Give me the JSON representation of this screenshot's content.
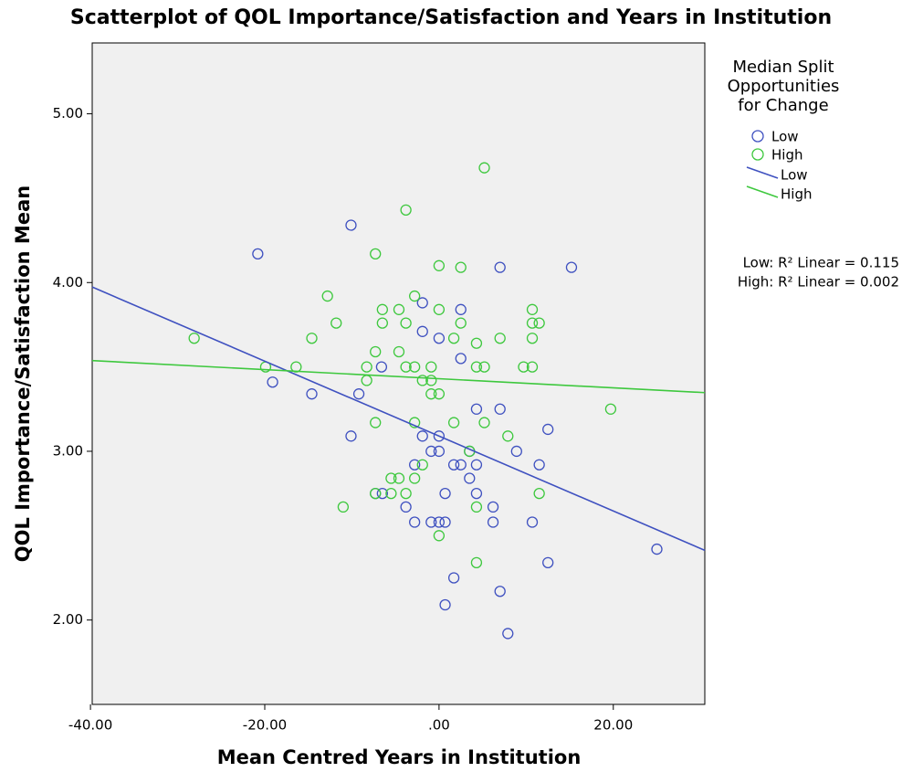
{
  "chart_data": {
    "type": "scatter",
    "title": "Scatterplot of QOL Importance/Satisfaction and Years in Institution",
    "x_label": "Mean Centred Years in Institution",
    "y_label": "QOL Importance/Satisfaction Mean",
    "legend_title": [
      "Median Split",
      "Opportunities",
      "for Change"
    ],
    "xlim": [
      -39.8,
      30.5
    ],
    "ylim": [
      1.5,
      5.42
    ],
    "xticks": [
      {
        "value": -40,
        "label": "-40.00"
      },
      {
        "value": -20,
        "label": "-20.00"
      },
      {
        "value": 0,
        "label": ".00"
      },
      {
        "value": 20,
        "label": "20.00"
      }
    ],
    "yticks": [
      {
        "value": 2,
        "label": "2.00"
      },
      {
        "value": 3,
        "label": "3.00"
      },
      {
        "value": 4,
        "label": "4.00"
      },
      {
        "value": 5,
        "label": "5.00"
      }
    ],
    "series": [
      {
        "name": "Low",
        "color": "#3f51c0",
        "x": [
          -20.8,
          -10.1,
          -19.1,
          -14.6,
          -10.1,
          -9.2,
          -6.6,
          -1.9,
          -1.9,
          0,
          2.5,
          2.5,
          7.0,
          15.2,
          4.3,
          7.0,
          12.5,
          -1.9,
          0,
          -0.9,
          0,
          3.5,
          8.9,
          -2.8,
          1.7,
          2.5,
          4.3,
          11.5,
          3.5,
          -7.3,
          -6.5,
          0.7,
          4.3,
          -3.8,
          6.2,
          -2.8,
          -0.9,
          0,
          0.7,
          6.2,
          10.7,
          12.5,
          1.7,
          0.7,
          7.0,
          7.9,
          25.0
        ],
        "values": [
          4.17,
          4.34,
          3.41,
          3.34,
          3.09,
          3.34,
          3.5,
          3.88,
          3.71,
          3.67,
          3.84,
          3.55,
          4.09,
          4.09,
          3.25,
          3.25,
          3.13,
          3.09,
          3.09,
          3.0,
          3.0,
          3.0,
          3.0,
          2.92,
          2.92,
          2.92,
          2.92,
          2.92,
          2.84,
          2.75,
          2.75,
          2.75,
          2.75,
          2.67,
          2.67,
          2.58,
          2.58,
          2.58,
          2.58,
          2.58,
          2.58,
          2.34,
          2.25,
          2.09,
          2.17,
          1.92,
          2.42
        ]
      },
      {
        "name": "High",
        "color": "#3ec83e",
        "x": [
          5.2,
          -3.8,
          -7.3,
          0,
          2.5,
          -12.8,
          -2.8,
          -6.5,
          -4.6,
          0,
          10.7,
          -11.8,
          -6.5,
          -3.8,
          2.5,
          10.7,
          11.5,
          -28.1,
          -14.6,
          1.7,
          7.0,
          10.7,
          -7.3,
          -4.6,
          4.3,
          -19.9,
          -16.4,
          -8.3,
          -3.8,
          -2.8,
          -0.9,
          4.3,
          5.2,
          9.7,
          10.7,
          -8.3,
          -1.9,
          -0.9,
          -0.9,
          0,
          5.2,
          -7.3,
          -2.8,
          1.7,
          19.7,
          7.9,
          3.5,
          -1.9,
          -5.5,
          -4.6,
          -2.8,
          -7.3,
          -5.5,
          -3.8,
          11.5,
          -11.0,
          4.3,
          0,
          4.3
        ],
        "values": [
          4.68,
          4.43,
          4.17,
          4.1,
          4.09,
          3.92,
          3.92,
          3.84,
          3.84,
          3.84,
          3.84,
          3.76,
          3.76,
          3.76,
          3.76,
          3.76,
          3.76,
          3.67,
          3.67,
          3.67,
          3.67,
          3.67,
          3.59,
          3.59,
          3.64,
          3.5,
          3.5,
          3.5,
          3.5,
          3.5,
          3.5,
          3.5,
          3.5,
          3.5,
          3.5,
          3.42,
          3.42,
          3.42,
          3.34,
          3.34,
          3.17,
          3.17,
          3.17,
          3.17,
          3.25,
          3.09,
          3.0,
          2.92,
          2.84,
          2.84,
          2.84,
          2.75,
          2.75,
          2.75,
          2.75,
          2.67,
          2.67,
          2.5,
          2.34
        ]
      }
    ],
    "fit_lines": [
      {
        "name": "Low",
        "color": "#3f51c0",
        "intercept": 3.09,
        "slope": -0.0222
      },
      {
        "name": "High",
        "color": "#3ec83e",
        "intercept": 3.43,
        "slope": -0.0027
      }
    ],
    "annotations": [
      "Low: R² Linear = 0.115",
      "High: R² Linear = 0.002"
    ]
  }
}
